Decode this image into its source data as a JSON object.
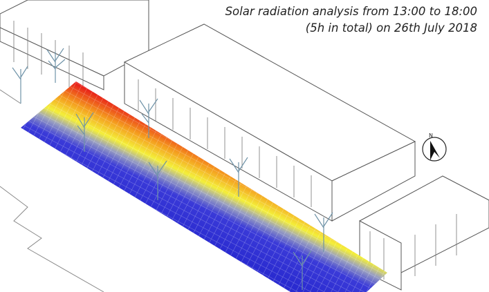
{
  "caption": {
    "line1": "Solar radiation analysis from 13:00 to 18:00",
    "line2": "(5h in total) on 26th July 2018"
  },
  "compass": {
    "label": "N"
  }
}
